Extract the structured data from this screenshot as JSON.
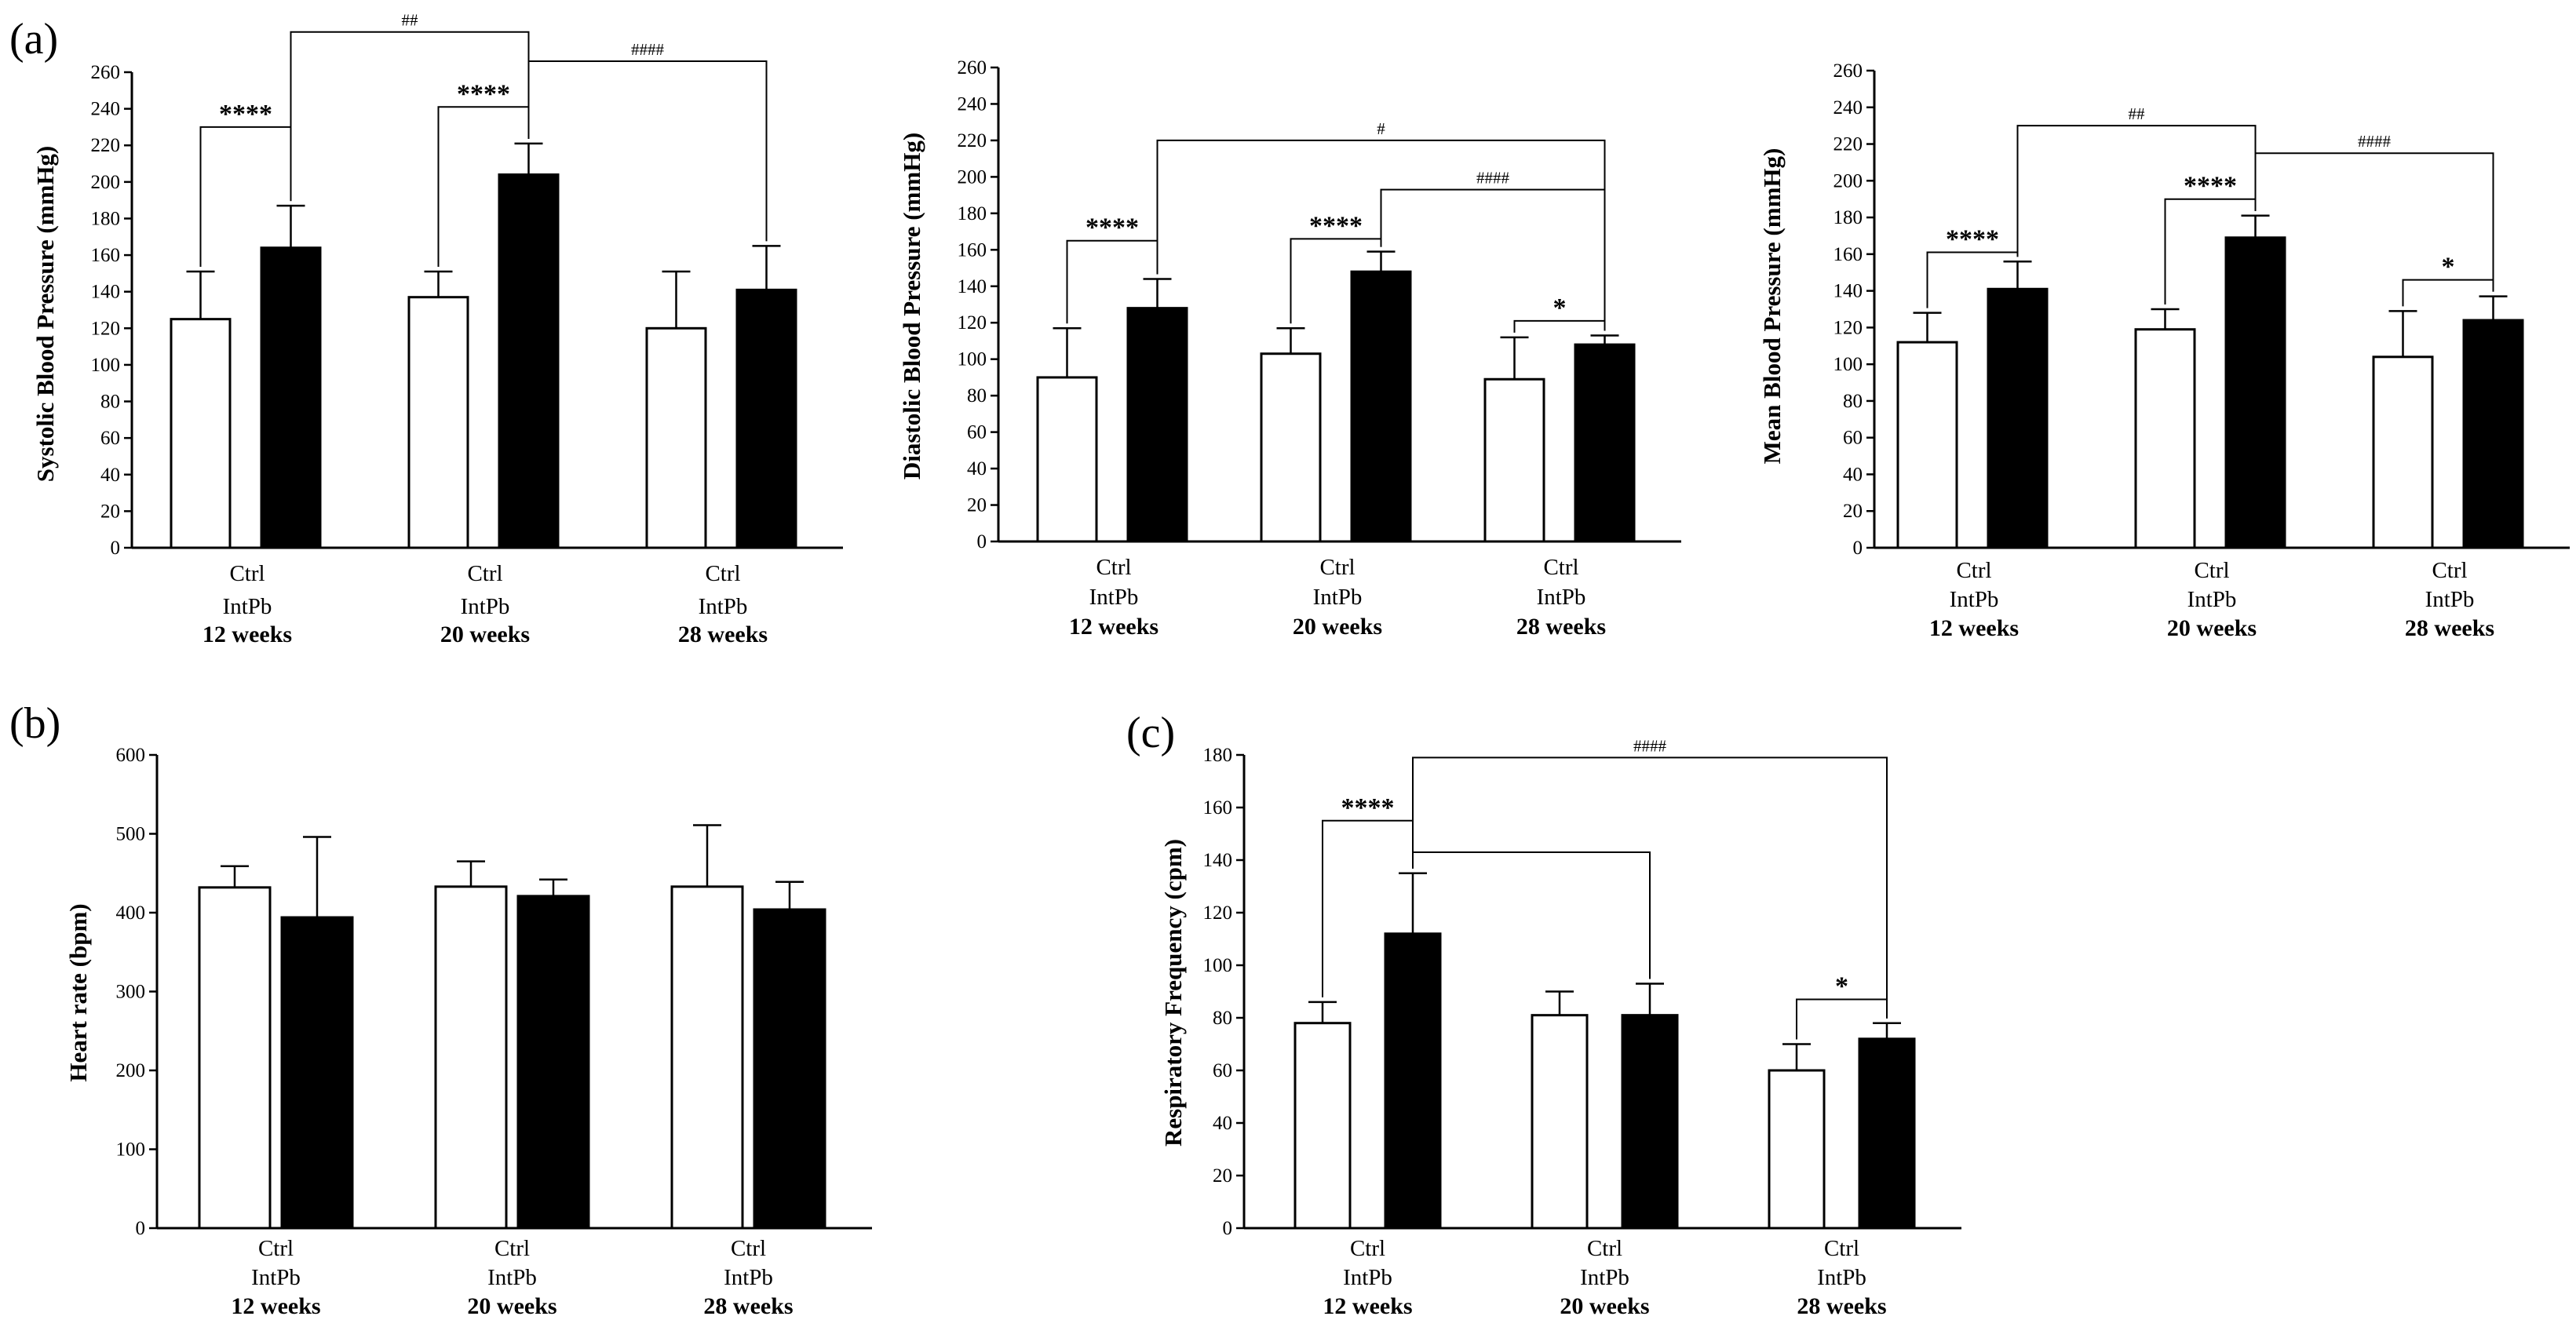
{
  "figure": {
    "panel_letters": [
      "(a)",
      "(b)",
      "(c)"
    ]
  },
  "chart_data": [
    {
      "id": "systolic",
      "type": "bar",
      "panel": "(a)",
      "title": "",
      "ylabel": "Systolic Blood Pressure (mmHg)",
      "ylim": [
        0,
        260
      ],
      "yticks": [
        0,
        20,
        40,
        60,
        80,
        100,
        120,
        140,
        160,
        180,
        200,
        220,
        240,
        260
      ],
      "groups": [
        "12 weeks",
        "20 weeks",
        "28 weeks"
      ],
      "category_labels": [
        "Ctrl",
        "IntPb"
      ],
      "series": [
        {
          "name": "Ctrl",
          "color": "#ffffff",
          "values": [
            125,
            137,
            120
          ],
          "errors": [
            26,
            14,
            31
          ]
        },
        {
          "name": "IntPb",
          "color": "#000000",
          "values": [
            164,
            204,
            141
          ],
          "errors": [
            23,
            17,
            24
          ]
        }
      ],
      "annotations": [
        {
          "label": "****",
          "kind": "star",
          "from": [
            0,
            0
          ],
          "to": [
            0,
            1
          ],
          "y": 230
        },
        {
          "label": "****",
          "kind": "star",
          "from": [
            1,
            0
          ],
          "to": [
            1,
            1
          ],
          "y": 241
        },
        {
          "label": "##",
          "kind": "hash",
          "from": [
            0,
            1
          ],
          "to": [
            1,
            1
          ],
          "y": 282
        },
        {
          "label": "####",
          "kind": "hash",
          "from": [
            1,
            1
          ],
          "to": [
            2,
            1
          ],
          "y": 266
        }
      ]
    },
    {
      "id": "diastolic",
      "type": "bar",
      "panel": "",
      "title": "",
      "ylabel": "Diastolic Blood Pressure (mmHg)",
      "ylim": [
        0,
        260
      ],
      "yticks": [
        0,
        20,
        40,
        60,
        80,
        100,
        120,
        140,
        160,
        180,
        200,
        220,
        240,
        260
      ],
      "groups": [
        "12 weeks",
        "20 weeks",
        "28 weeks"
      ],
      "category_labels": [
        "Ctrl",
        "IntPb"
      ],
      "series": [
        {
          "name": "Ctrl",
          "color": "#ffffff",
          "values": [
            90,
            103,
            89
          ],
          "errors": [
            27,
            14,
            23
          ]
        },
        {
          "name": "IntPb",
          "color": "#000000",
          "values": [
            128,
            148,
            108
          ],
          "errors": [
            16,
            11,
            5
          ]
        }
      ],
      "annotations": [
        {
          "label": "****",
          "kind": "star",
          "from": [
            0,
            0
          ],
          "to": [
            0,
            1
          ],
          "y": 165
        },
        {
          "label": "****",
          "kind": "star",
          "from": [
            1,
            0
          ],
          "to": [
            1,
            1
          ],
          "y": 166
        },
        {
          "label": "*",
          "kind": "star",
          "from": [
            2,
            0
          ],
          "to": [
            2,
            1
          ],
          "y": 121
        },
        {
          "label": "#",
          "kind": "hash",
          "from": [
            0,
            1
          ],
          "to": [
            2,
            1
          ],
          "y": 220
        },
        {
          "label": "####",
          "kind": "hash",
          "from": [
            1,
            1
          ],
          "to": [
            2,
            1
          ],
          "y": 193
        }
      ]
    },
    {
      "id": "mean",
      "type": "bar",
      "panel": "",
      "title": "",
      "ylabel": "Mean Blood Pressure (mmHg)",
      "ylim": [
        0,
        260
      ],
      "yticks": [
        0,
        20,
        40,
        60,
        80,
        100,
        120,
        140,
        160,
        180,
        200,
        220,
        240,
        260
      ],
      "groups": [
        "12 weeks",
        "20 weeks",
        "28 weeks"
      ],
      "category_labels": [
        "Ctrl",
        "IntPb"
      ],
      "series": [
        {
          "name": "Ctrl",
          "color": "#ffffff",
          "values": [
            112,
            119,
            104
          ],
          "errors": [
            16,
            11,
            25
          ]
        },
        {
          "name": "IntPb",
          "color": "#000000",
          "values": [
            141,
            169,
            124
          ],
          "errors": [
            15,
            12,
            13
          ]
        }
      ],
      "annotations": [
        {
          "label": "****",
          "kind": "star",
          "from": [
            0,
            0
          ],
          "to": [
            0,
            1
          ],
          "y": 161
        },
        {
          "label": "****",
          "kind": "star",
          "from": [
            1,
            0
          ],
          "to": [
            1,
            1
          ],
          "y": 190
        },
        {
          "label": "*",
          "kind": "star",
          "from": [
            2,
            0
          ],
          "to": [
            2,
            1
          ],
          "y": 146
        },
        {
          "label": "##",
          "kind": "hash",
          "from": [
            0,
            1
          ],
          "to": [
            1,
            1
          ],
          "y": 230
        },
        {
          "label": "####",
          "kind": "hash",
          "from": [
            1,
            1
          ],
          "to": [
            2,
            1
          ],
          "y": 215
        }
      ]
    },
    {
      "id": "heart-rate",
      "type": "bar",
      "panel": "(b)",
      "title": "",
      "ylabel": "Heart rate (bpm)",
      "ylim": [
        0,
        600
      ],
      "yticks": [
        0,
        100,
        200,
        300,
        400,
        500,
        600
      ],
      "groups": [
        "12 weeks",
        "20 weeks",
        "28 weeks"
      ],
      "category_labels": [
        "Ctrl",
        "IntPb"
      ],
      "series": [
        {
          "name": "Ctrl",
          "color": "#ffffff",
          "values": [
            432,
            433,
            433
          ],
          "errors": [
            27,
            32,
            78
          ]
        },
        {
          "name": "IntPb",
          "color": "#000000",
          "values": [
            394,
            421,
            404
          ],
          "errors": [
            102,
            21,
            35
          ]
        }
      ],
      "annotations": []
    },
    {
      "id": "respiratory",
      "type": "bar",
      "panel": "(c)",
      "title": "",
      "ylabel": "Respiratory Frequency (cpm)",
      "ylim": [
        0,
        180
      ],
      "yticks": [
        0,
        20,
        40,
        60,
        80,
        100,
        120,
        140,
        160,
        180
      ],
      "groups": [
        "12 weeks",
        "20 weeks",
        "28 weeks"
      ],
      "category_labels": [
        "Ctrl",
        "IntPb"
      ],
      "series": [
        {
          "name": "Ctrl",
          "color": "#ffffff",
          "values": [
            78,
            81,
            60
          ],
          "errors": [
            8,
            9,
            10
          ]
        },
        {
          "name": "IntPb",
          "color": "#000000",
          "values": [
            112,
            81,
            72
          ],
          "errors": [
            23,
            12,
            6
          ]
        }
      ],
      "annotations": [
        {
          "label": "****",
          "kind": "star",
          "from": [
            0,
            0
          ],
          "to": [
            0,
            1
          ],
          "y": 155
        },
        {
          "label": "",
          "kind": "bracket",
          "from": [
            0,
            1
          ],
          "to": [
            1,
            1
          ],
          "y": 143
        },
        {
          "label": "####",
          "kind": "hash",
          "from": [
            0,
            1
          ],
          "to": [
            2,
            1
          ],
          "y": 179
        },
        {
          "label": "*",
          "kind": "star",
          "from": [
            2,
            0
          ],
          "to": [
            2,
            1
          ],
          "y": 87
        }
      ]
    }
  ]
}
